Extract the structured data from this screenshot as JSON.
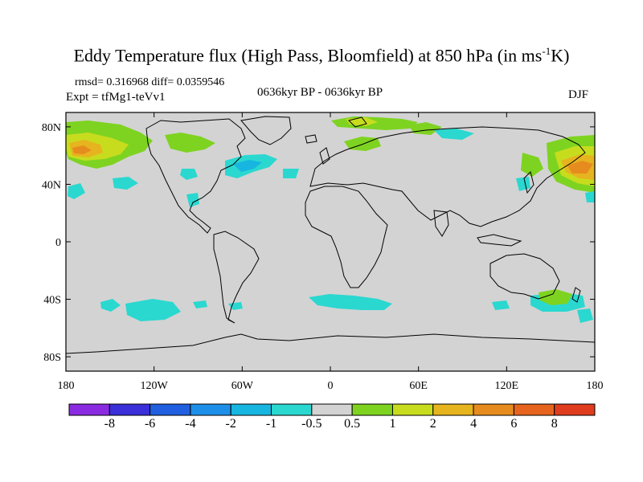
{
  "title": {
    "main": "Eddy Temperature flux (High Pass, Bloomfield) at 850 hPa (in ms",
    "sup": "-1",
    "tail": "K)"
  },
  "stats": "rmsd= 0.316968 diff= 0.0359546",
  "experiment": "Expt = tfMg1-teVv1",
  "period": "0636kyr BP - 0636kyr BP",
  "season": "DJF",
  "map": {
    "projection": "cylindrical equidistant",
    "lon_range": [
      -180,
      180
    ],
    "lat_range": [
      -90,
      90
    ],
    "background_color": "#d3d3d3",
    "y_ticks": [
      {
        "lat": 80,
        "label": "80N"
      },
      {
        "lat": 40,
        "label": "40N"
      },
      {
        "lat": 0,
        "label": "0"
      },
      {
        "lat": -40,
        "label": "40S"
      },
      {
        "lat": -80,
        "label": "80S"
      }
    ],
    "x_ticks": [
      {
        "lon": -180,
        "label": "180"
      },
      {
        "lon": -120,
        "label": "120W"
      },
      {
        "lon": -60,
        "label": "60W"
      },
      {
        "lon": 0,
        "label": "0"
      },
      {
        "lon": 60,
        "label": "60E"
      },
      {
        "lon": 120,
        "label": "120E"
      },
      {
        "lon": 180,
        "label": "180"
      }
    ]
  },
  "colorbar": {
    "colors": [
      "#8a2be2",
      "#3a2fd8",
      "#1f5fe0",
      "#1e8fe8",
      "#17b6e0",
      "#2ad8d0",
      "#d3d3d3",
      "#7ed321",
      "#c8dc1e",
      "#e6b41e",
      "#e68c1e",
      "#e6641e",
      "#e03c1e"
    ],
    "labels": [
      "-8",
      "-6",
      "-4",
      "-2",
      "-1",
      "-0.5",
      "0.5",
      "1",
      "2",
      "4",
      "6",
      "8"
    ]
  }
}
